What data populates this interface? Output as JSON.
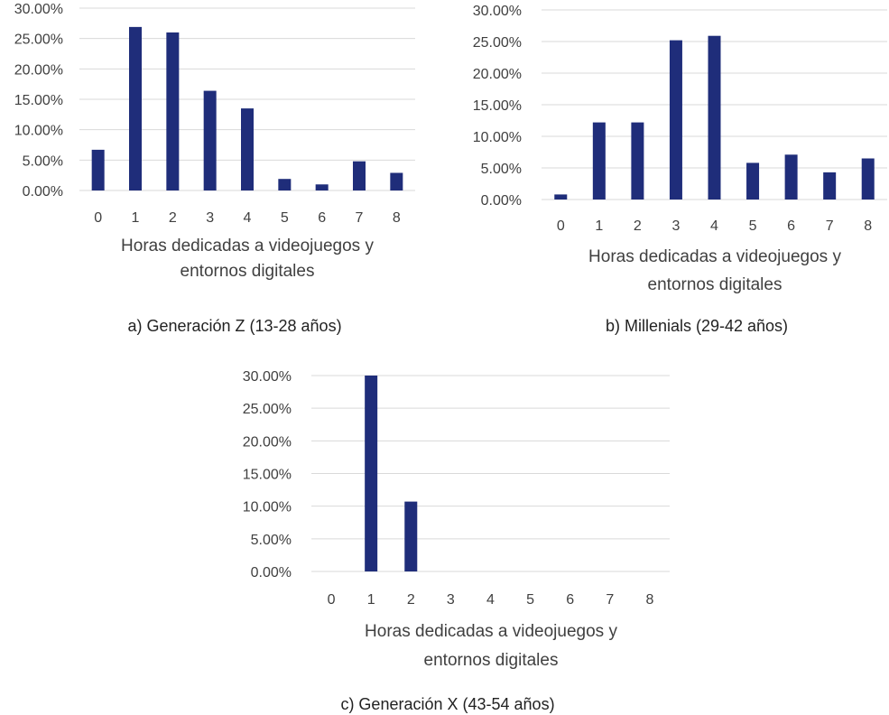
{
  "colors": {
    "bar": "#1f2d7a",
    "grid": "#d9d9d9",
    "text": "#404040"
  },
  "chart_data": [
    {
      "type": "bar",
      "categories": [
        "0",
        "1",
        "2",
        "3",
        "4",
        "5",
        "6",
        "7",
        "8"
      ],
      "values": [
        6.7,
        26.9,
        26.0,
        16.4,
        13.5,
        1.9,
        1.0,
        4.8,
        2.9
      ],
      "ylim": [
        0,
        30
      ],
      "yticks": [
        "0.00%",
        "5.00%",
        "10.00%",
        "15.00%",
        "20.00%",
        "25.00%",
        "30.00%"
      ],
      "xlabel_line1": "Horas dedicadas a videojuegos y",
      "xlabel_line2": "entornos digitales",
      "ylabel": "",
      "caption": "a) Generación Z (13-28 años)"
    },
    {
      "type": "bar",
      "categories": [
        "0",
        "1",
        "2",
        "3",
        "4",
        "5",
        "6",
        "7",
        "8"
      ],
      "values": [
        0.8,
        12.2,
        12.2,
        25.2,
        25.9,
        5.8,
        7.1,
        4.3,
        6.5
      ],
      "ylim": [
        0,
        30
      ],
      "yticks": [
        "0.00%",
        "5.00%",
        "10.00%",
        "15.00%",
        "20.00%",
        "25.00%",
        "30.00%"
      ],
      "xlabel_line1": "Horas dedicadas a videojuegos y",
      "xlabel_line2": "entornos digitales",
      "ylabel": "",
      "caption": "b) Millenials (29-42 años)"
    },
    {
      "type": "bar",
      "categories": [
        "0",
        "1",
        "2",
        "3",
        "4",
        "5",
        "6",
        "7",
        "8"
      ],
      "values": [
        0,
        30,
        10.7,
        0,
        0,
        0,
        0,
        0,
        0
      ],
      "ylim": [
        0,
        30
      ],
      "yticks": [
        "0.00%",
        "5.00%",
        "10.00%",
        "15.00%",
        "20.00%",
        "25.00%",
        "30.00%"
      ],
      "xlabel_line1": "Horas dedicadas a videojuegos y",
      "xlabel_line2": "entornos digitales",
      "ylabel": "",
      "caption": "c) Generación X (43-54 años)"
    }
  ]
}
